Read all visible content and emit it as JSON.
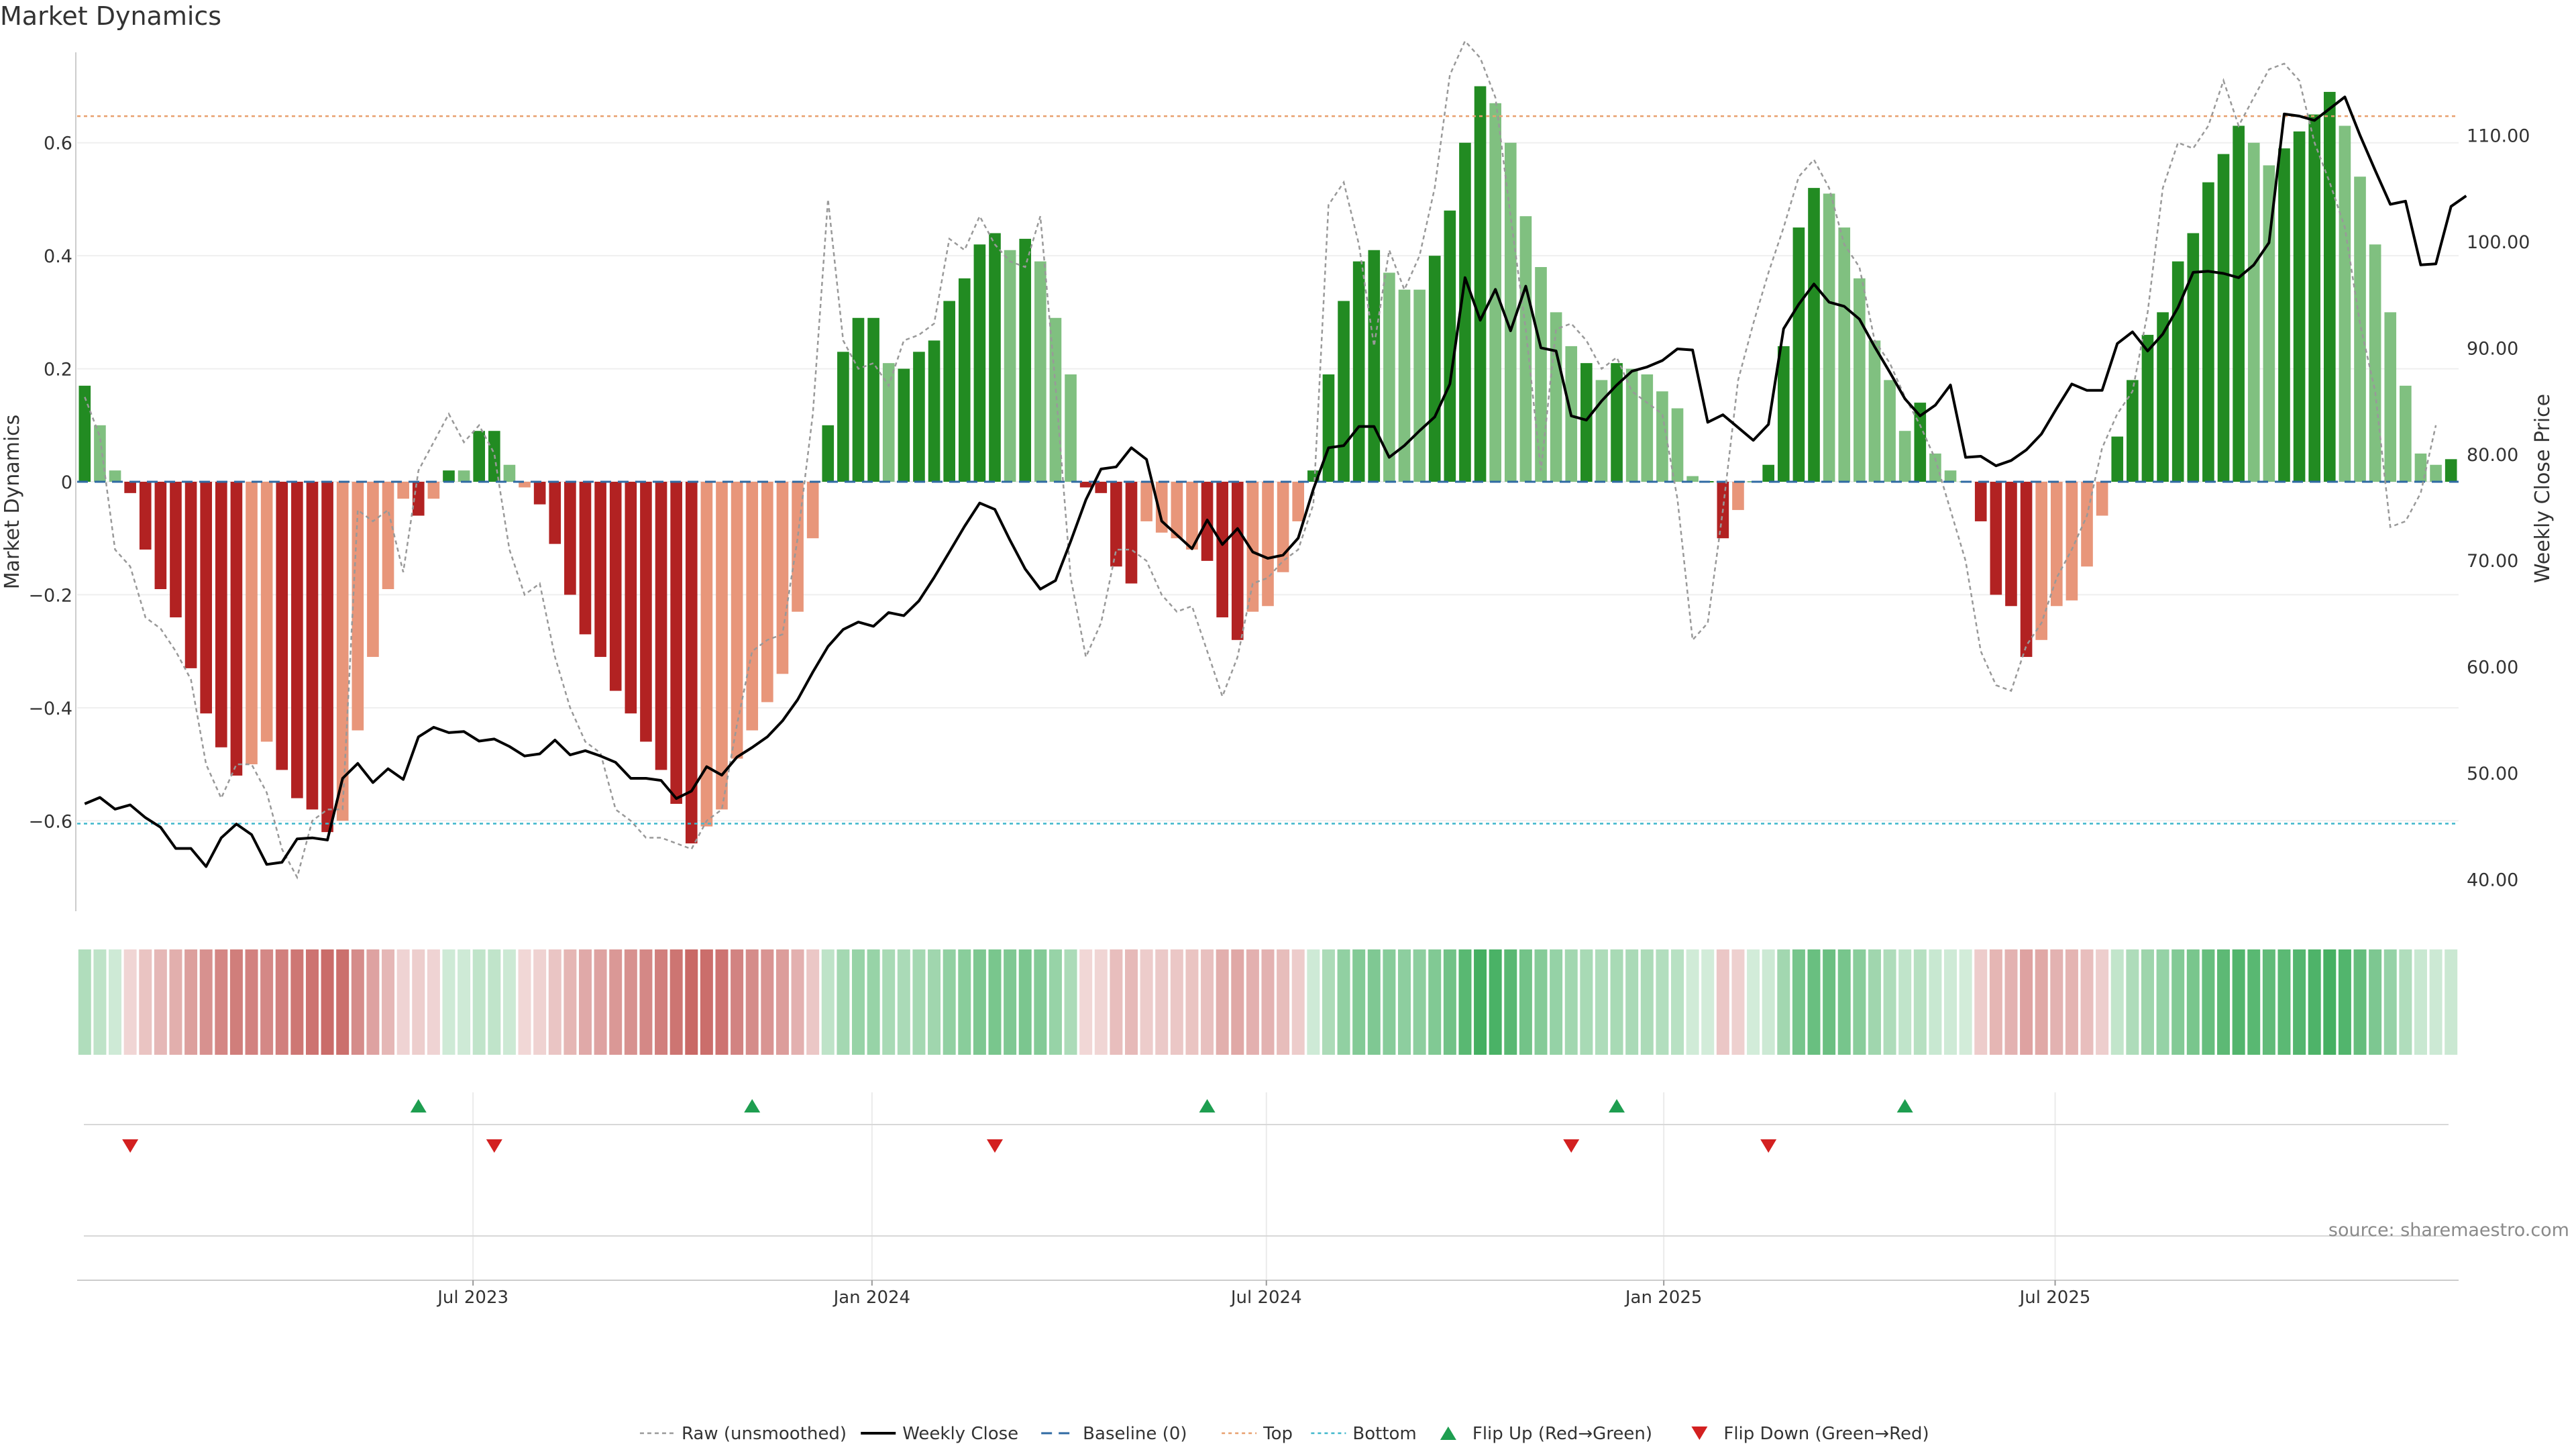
{
  "chart_data": {
    "type": "bar",
    "title": "Market Dynamics",
    "source": "source: sharemaestro.com",
    "y_left": {
      "label": "Market Dynamics",
      "range": [
        -0.76,
        0.76
      ],
      "ticks": [
        -0.6,
        -0.4,
        -0.2,
        0,
        0.2,
        0.4,
        0.6
      ],
      "tick_labels": [
        "−0.6",
        "−0.4",
        "−0.2",
        "0",
        "0.2",
        "0.4",
        "0.6"
      ]
    },
    "y_right": {
      "label": "Weekly Close Price",
      "range": [
        37.0,
        117.8
      ],
      "ticks": [
        40,
        50,
        60,
        70,
        80,
        90,
        100,
        110
      ],
      "tick_labels": [
        "40.00",
        "50.00",
        "60.00",
        "70.00",
        "80.00",
        "90.00",
        "100.00",
        "110.00"
      ]
    },
    "x_axis": {
      "start_date": "2023-01-02",
      "interval": "weekly",
      "tick_labels": [
        "Jul 2023",
        "Jan 2024",
        "Jul 2024",
        "Jan 2025",
        "Jul 2025"
      ],
      "tick_week_index": [
        25.6,
        51.9,
        77.9,
        104.1,
        129.9
      ]
    },
    "reference_lines": [
      {
        "name": "Baseline (0)",
        "value": 0,
        "color": "#2f6aa3",
        "style": "dashed"
      },
      {
        "name": "Top",
        "value": 0.647,
        "color": "#e8a06e",
        "style": "dotted"
      },
      {
        "name": "Bottom",
        "value": -0.605,
        "color": "#3fb7cc",
        "style": "dotted"
      }
    ],
    "colors": {
      "strong_green": "#228b22",
      "weak_green": "#80c080",
      "strong_red": "#b22222",
      "weak_red": "#e8967a",
      "raw_line": "#999999",
      "close_line": "#000000",
      "flip_up": "#1e9e50",
      "flip_down": "#d32020"
    },
    "series": [
      {
        "name": "Market Dynamics",
        "kind": "bars",
        "values": [
          0.17,
          0.1,
          0.02,
          -0.02,
          -0.12,
          -0.19,
          -0.24,
          -0.33,
          -0.41,
          -0.47,
          -0.52,
          -0.5,
          -0.46,
          -0.51,
          -0.56,
          -0.58,
          -0.62,
          -0.6,
          -0.44,
          -0.31,
          -0.19,
          -0.03,
          -0.06,
          -0.03,
          0.02,
          0.02,
          0.09,
          0.09,
          0.03,
          -0.01,
          -0.04,
          -0.11,
          -0.2,
          -0.27,
          -0.31,
          -0.37,
          -0.41,
          -0.46,
          -0.51,
          -0.57,
          -0.64,
          -0.61,
          -0.58,
          -0.49,
          -0.44,
          -0.39,
          -0.34,
          -0.23,
          -0.1,
          0.1,
          0.23,
          0.29,
          0.29,
          0.21,
          0.2,
          0.23,
          0.25,
          0.32,
          0.36,
          0.42,
          0.44,
          0.41,
          0.43,
          0.39,
          0.29,
          0.19,
          -0.01,
          -0.02,
          -0.15,
          -0.18,
          -0.07,
          -0.09,
          -0.1,
          -0.12,
          -0.14,
          -0.24,
          -0.28,
          -0.23,
          -0.22,
          -0.16,
          -0.07,
          0.02,
          0.19,
          0.32,
          0.39,
          0.41,
          0.37,
          0.34,
          0.34,
          0.4,
          0.48,
          0.6,
          0.7,
          0.67,
          0.6,
          0.47,
          0.38,
          0.3,
          0.24,
          0.21,
          0.18,
          0.21,
          0.2,
          0.19,
          0.16,
          0.13,
          0.01,
          0.0,
          -0.1,
          -0.05,
          0.0,
          0.03,
          0.24,
          0.45,
          0.52,
          0.51,
          0.45,
          0.36,
          0.25,
          0.18,
          0.09,
          0.14,
          0.05,
          0.02,
          0.0,
          -0.07,
          -0.2,
          -0.22,
          -0.31,
          -0.28,
          -0.22,
          -0.21,
          -0.15,
          -0.06,
          0.08,
          0.18,
          0.26,
          0.3,
          0.39,
          0.44,
          0.53,
          0.58,
          0.63,
          0.6,
          0.56,
          0.59,
          0.62,
          0.65,
          0.69,
          0.63,
          0.54,
          0.42,
          0.3,
          0.17,
          0.05,
          0.03,
          0.04
        ],
        "strong": [
          1,
          0,
          0,
          1,
          1,
          1,
          1,
          1,
          1,
          1,
          1,
          0,
          0,
          1,
          1,
          1,
          1,
          0,
          0,
          0,
          0,
          0,
          1,
          0,
          1,
          0,
          1,
          1,
          0,
          0,
          1,
          1,
          1,
          1,
          1,
          1,
          1,
          1,
          1,
          1,
          1,
          0,
          0,
          0,
          0,
          0,
          0,
          0,
          0,
          1,
          1,
          1,
          1,
          0,
          1,
          1,
          1,
          1,
          1,
          1,
          1,
          0,
          1,
          0,
          0,
          0,
          1,
          1,
          1,
          1,
          0,
          0,
          0,
          0,
          1,
          1,
          1,
          0,
          0,
          0,
          0,
          1,
          1,
          1,
          1,
          1,
          0,
          0,
          0,
          1,
          1,
          1,
          1,
          0,
          0,
          0,
          0,
          0,
          0,
          1,
          0,
          1,
          0,
          0,
          0,
          0,
          0,
          1,
          1,
          0,
          0,
          1,
          1,
          1,
          1,
          0,
          0,
          0,
          0,
          0,
          0,
          1,
          0,
          0,
          0,
          1,
          1,
          1,
          1,
          0,
          0,
          0,
          0,
          0,
          1,
          1,
          1,
          1,
          1,
          1,
          1,
          1,
          1,
          0,
          0,
          1,
          1,
          1,
          1,
          0,
          0,
          0,
          0,
          0,
          0,
          0,
          1
        ]
      },
      {
        "name": "Raw (unsmoothed)",
        "kind": "line",
        "values": [
          0.15,
          0.08,
          -0.12,
          -0.15,
          -0.24,
          -0.26,
          -0.3,
          -0.35,
          -0.5,
          -0.56,
          -0.5,
          -0.5,
          -0.55,
          -0.65,
          -0.7,
          -0.6,
          -0.58,
          -0.58,
          -0.05,
          -0.07,
          -0.05,
          -0.16,
          0.02,
          0.07,
          0.12,
          0.07,
          0.1,
          0.05,
          -0.12,
          -0.2,
          -0.18,
          -0.31,
          -0.4,
          -0.46,
          -0.48,
          -0.58,
          -0.6,
          -0.63,
          -0.63,
          -0.64,
          -0.65,
          -0.6,
          -0.58,
          -0.43,
          -0.3,
          -0.28,
          -0.27,
          -0.1,
          0.12,
          0.5,
          0.25,
          0.2,
          0.21,
          0.17,
          0.25,
          0.26,
          0.28,
          0.43,
          0.41,
          0.47,
          0.42,
          0.39,
          0.38,
          0.47,
          0.17,
          -0.17,
          -0.31,
          -0.25,
          -0.12,
          -0.12,
          -0.14,
          -0.2,
          -0.23,
          -0.22,
          -0.3,
          -0.38,
          -0.31,
          -0.18,
          -0.17,
          -0.14,
          -0.12,
          -0.04,
          0.49,
          0.53,
          0.42,
          0.24,
          0.41,
          0.34,
          0.4,
          0.52,
          0.72,
          0.78,
          0.75,
          0.68,
          0.47,
          0.27,
          0.02,
          0.27,
          0.28,
          0.25,
          0.2,
          0.22,
          0.16,
          0.14,
          0.12,
          -0.03,
          -0.28,
          -0.25,
          -0.05,
          0.18,
          0.28,
          0.37,
          0.45,
          0.54,
          0.57,
          0.52,
          0.42,
          0.38,
          0.25,
          0.21,
          0.15,
          0.1,
          0.04,
          -0.05,
          -0.14,
          -0.3,
          -0.36,
          -0.37,
          -0.29,
          -0.25,
          -0.17,
          -0.12,
          -0.06,
          0.06,
          0.12,
          0.16,
          0.3,
          0.52,
          0.6,
          0.59,
          0.63,
          0.71,
          0.63,
          0.68,
          0.73,
          0.74,
          0.71,
          0.6,
          0.53,
          0.45,
          0.28,
          0.16,
          -0.08,
          -0.07,
          -0.02,
          0.1
        ]
      },
      {
        "name": "Weekly Close",
        "kind": "line",
        "axis": "right",
        "values": [
          47.1,
          47.7,
          46.6,
          47.0,
          45.8,
          44.9,
          42.9,
          42.9,
          41.2,
          43.9,
          45.2,
          44.2,
          41.4,
          41.6,
          43.8,
          43.9,
          43.7,
          49.5,
          50.9,
          49.1,
          50.4,
          49.4,
          53.4,
          54.3,
          53.8,
          53.9,
          53.0,
          53.2,
          52.5,
          51.6,
          51.8,
          53.1,
          51.7,
          52.1,
          51.6,
          51.0,
          49.5,
          49.5,
          49.3,
          47.6,
          48.3,
          50.6,
          49.8,
          51.5,
          52.4,
          53.4,
          54.9,
          56.9,
          59.5,
          61.9,
          63.5,
          64.2,
          63.8,
          65.1,
          64.8,
          66.2,
          68.4,
          70.8,
          73.2,
          75.4,
          74.8,
          71.9,
          69.2,
          67.3,
          68.1,
          71.8,
          75.7,
          78.6,
          78.8,
          80.6,
          79.5,
          73.7,
          72.4,
          71.1,
          73.8,
          71.5,
          73.0,
          70.8,
          70.2,
          70.5,
          72.1,
          76.7,
          80.6,
          80.8,
          82.6,
          82.6,
          79.7,
          80.8,
          82.2,
          83.5,
          86.6,
          96.6,
          92.6,
          95.5,
          91.6,
          95.8,
          90.0,
          89.7,
          83.6,
          83.2,
          85.0,
          86.5,
          87.8,
          88.2,
          88.8,
          89.9,
          89.8,
          83.0,
          83.7,
          82.5,
          81.3,
          82.8,
          91.8,
          94.1,
          96.0,
          94.3,
          93.9,
          92.7,
          90.1,
          87.7,
          85.2,
          83.6,
          84.6,
          86.5,
          79.7,
          79.8,
          78.9,
          79.4,
          80.4,
          81.9,
          84.3,
          86.6,
          86.0,
          86.0,
          90.4,
          91.5,
          89.7,
          91.3,
          93.8,
          97.1,
          97.2,
          97.0,
          96.6,
          97.8,
          99.9,
          112.0,
          111.8,
          111.4,
          112.5,
          113.6,
          110.0,
          106.7,
          103.5,
          103.8,
          97.8,
          97.9,
          103.3,
          104.3
        ]
      }
    ],
    "heat_strip": {
      "label": "trend strength strip",
      "values_source": "Market Dynamics"
    },
    "flips": {
      "up": [
        22,
        44,
        74,
        101,
        120
      ],
      "down": [
        3,
        27,
        60,
        98,
        111
      ]
    },
    "legend": {
      "placement": "bottom-center",
      "entries": [
        {
          "key": "raw",
          "label": "Raw (unsmoothed)"
        },
        {
          "key": "close",
          "label": "Weekly Close"
        },
        {
          "key": "baseline",
          "label": "Baseline (0)"
        },
        {
          "key": "top",
          "label": "Top"
        },
        {
          "key": "bottom",
          "label": "Bottom"
        },
        {
          "key": "flipup",
          "label": "Flip Up (Red→Green)"
        },
        {
          "key": "flipdown",
          "label": "Flip Down (Green→Red)"
        }
      ]
    },
    "grid": true
  }
}
